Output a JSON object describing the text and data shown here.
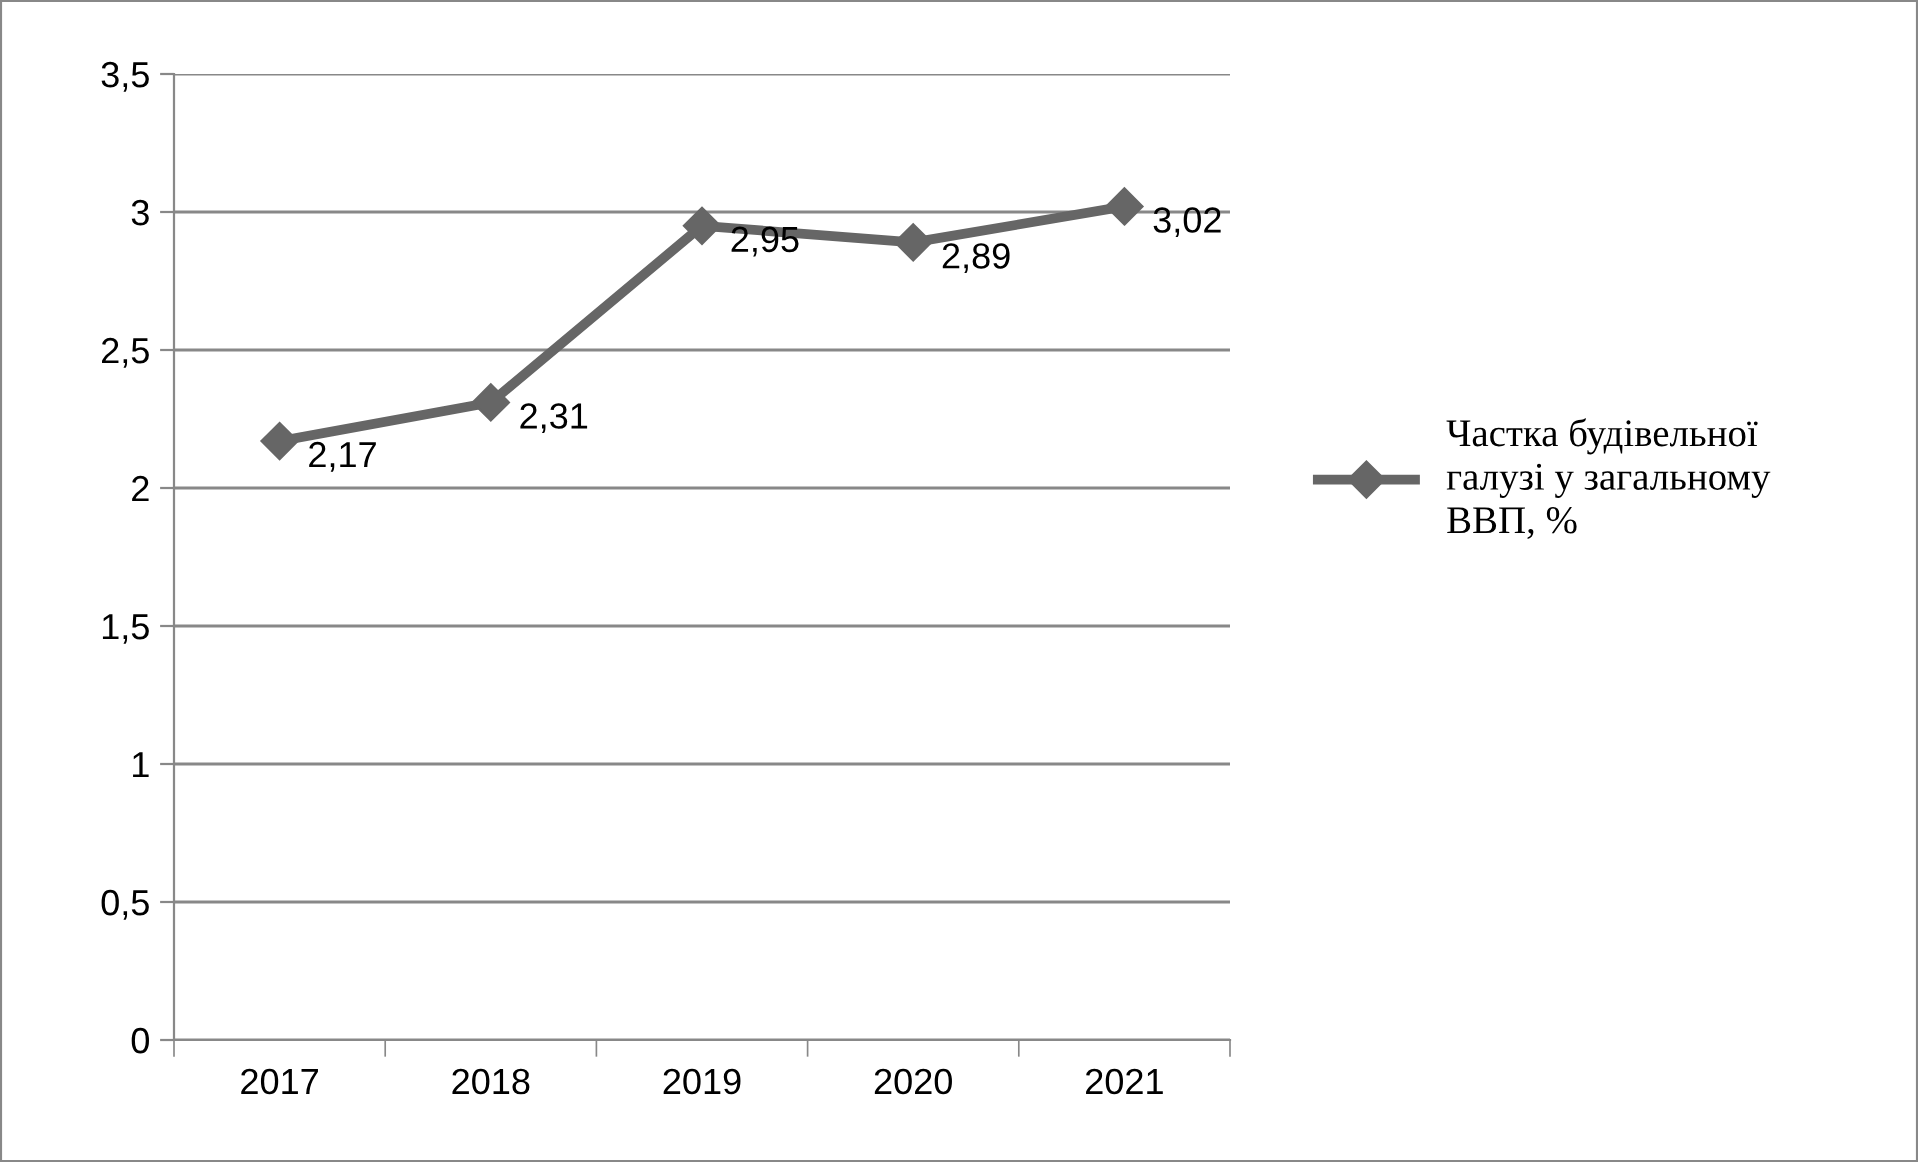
{
  "chart_data": {
    "type": "line",
    "categories": [
      "2017",
      "2018",
      "2019",
      "2020",
      "2021"
    ],
    "series": [
      {
        "name": "Частка будівельної галузі у загальному ВВП, %",
        "color": "#666666",
        "values": [
          2.17,
          2.31,
          2.95,
          2.89,
          3.02
        ],
        "value_labels": [
          "2,17",
          "2,31",
          "2,95",
          "2,89",
          "3,02"
        ]
      }
    ],
    "ylim": [
      0,
      3.5
    ],
    "yticks": [
      0,
      {
        "value": 0.5,
        "label": "0,5"
      },
      1,
      {
        "value": 1.5,
        "label": "1,5"
      },
      2,
      {
        "value": 2.5,
        "label": "2,5"
      },
      3,
      {
        "value": 3.5,
        "label": "3,5"
      }
    ],
    "grid": "y",
    "legend": "right",
    "marker": "diamond",
    "line_style": "solid"
  }
}
